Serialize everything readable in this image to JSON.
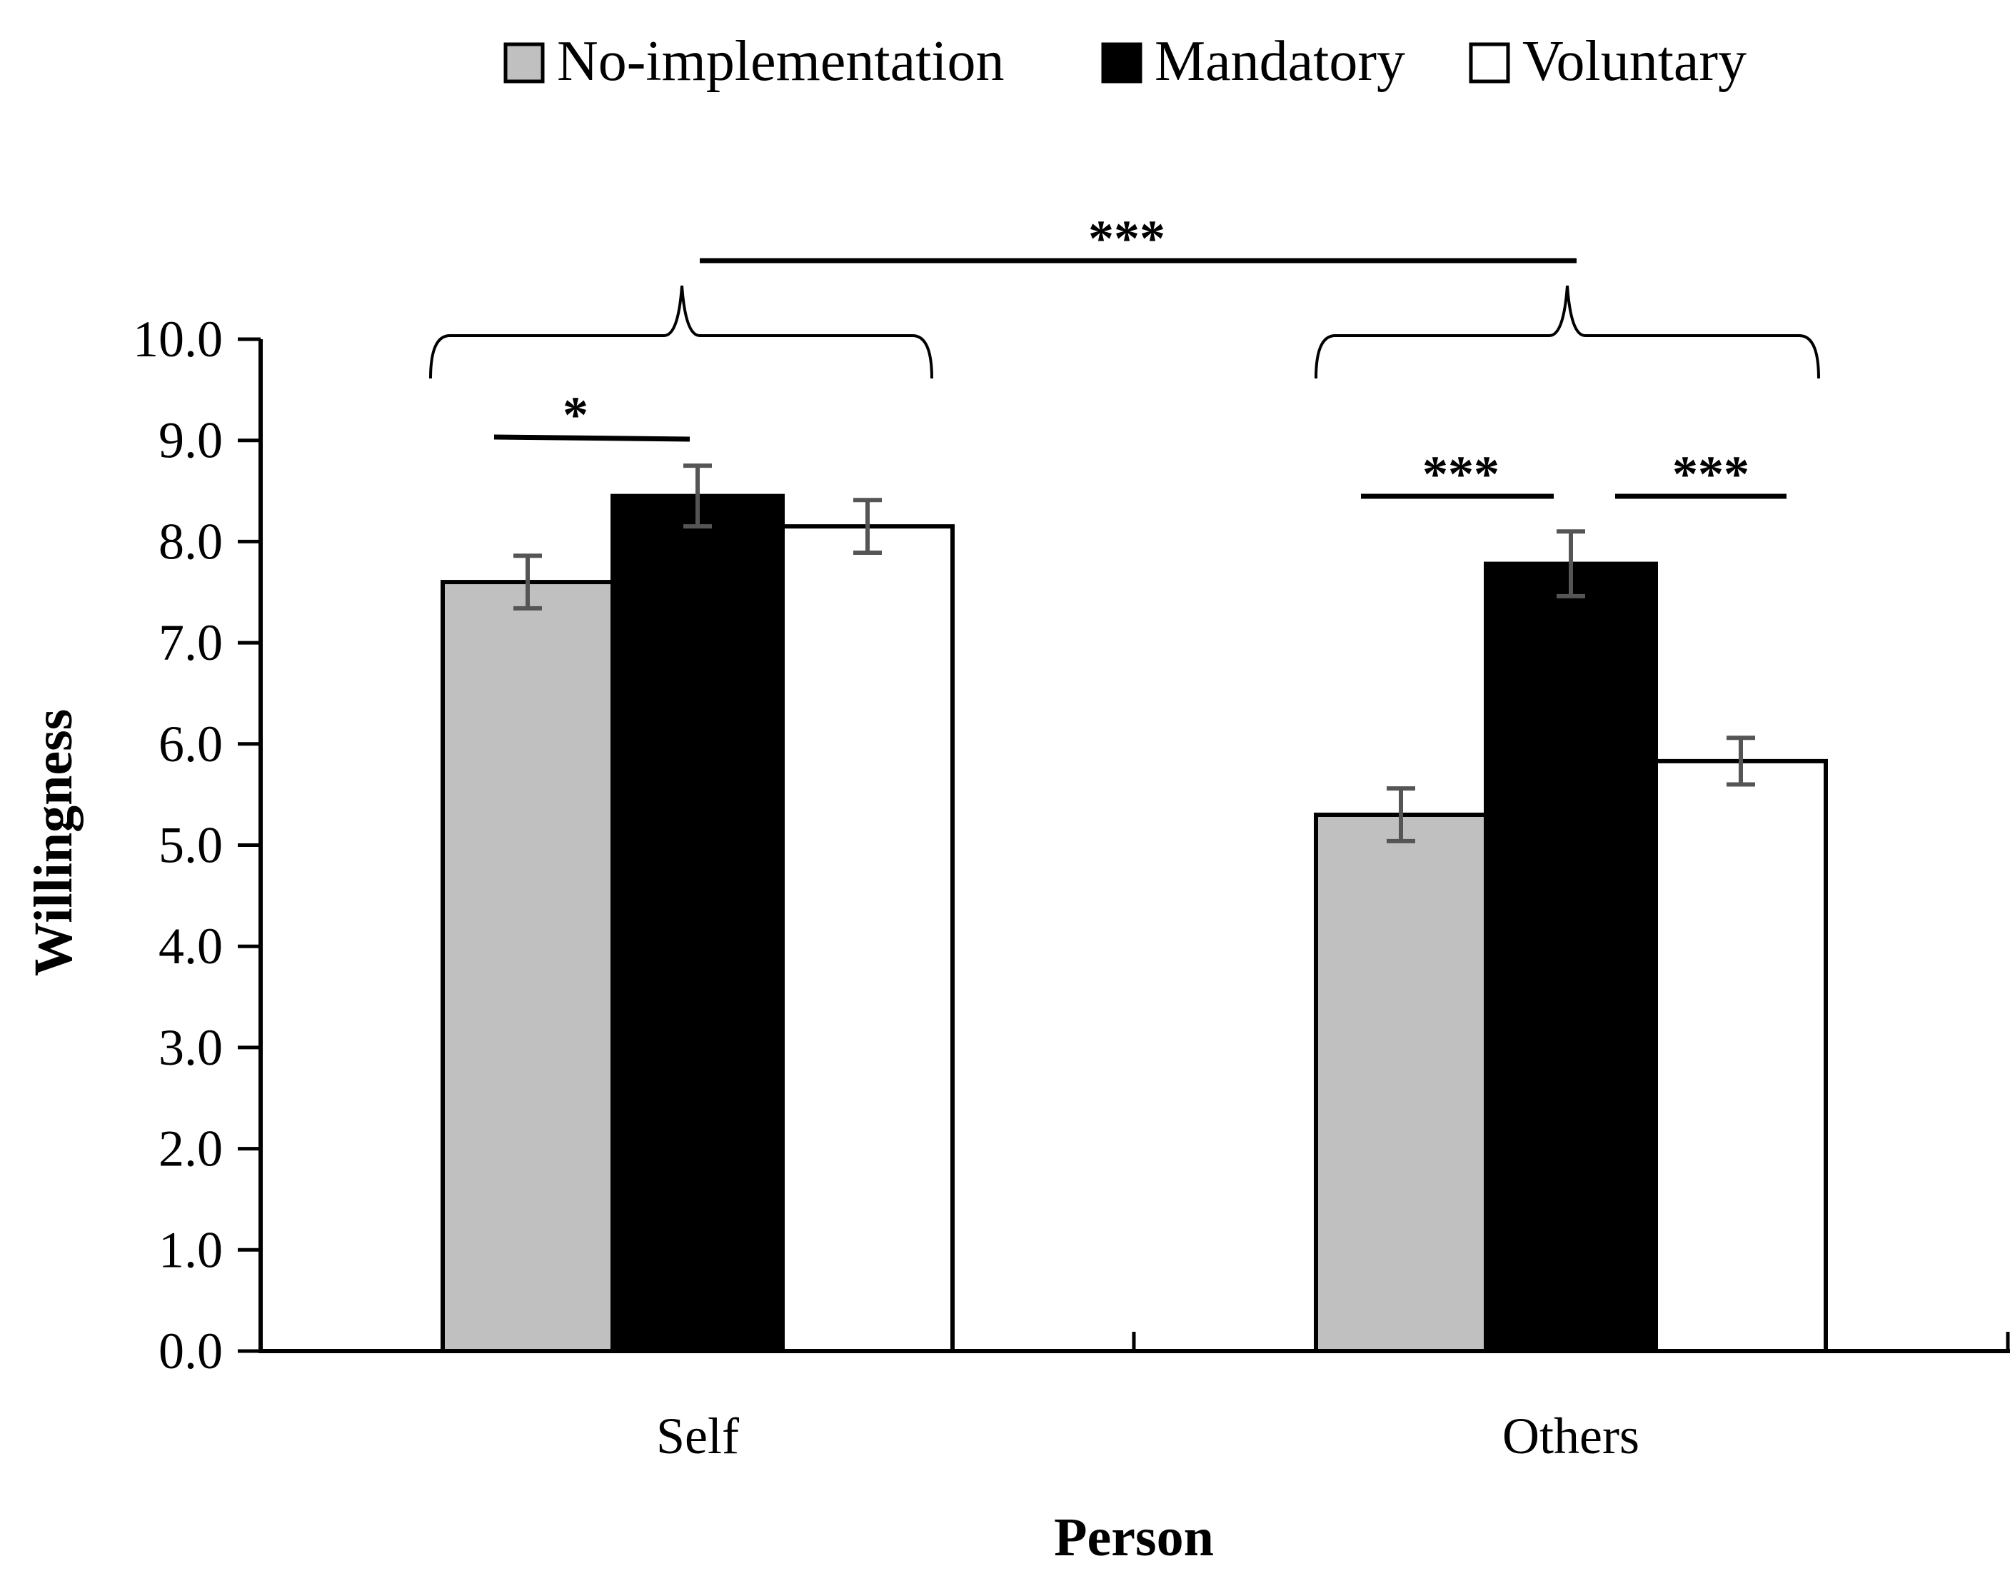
{
  "chart_data": {
    "type": "bar",
    "categories": [
      "Self",
      "Others"
    ],
    "series": [
      {
        "name": "No-implementation",
        "color": "#c0c0c0",
        "values": [
          7.6,
          5.3
        ],
        "errors": [
          0.26,
          0.26
        ]
      },
      {
        "name": "Mandatory",
        "color": "#000000",
        "values": [
          8.45,
          7.78
        ],
        "errors": [
          0.3,
          0.32
        ]
      },
      {
        "name": "Voluntary",
        "color": "#ffffff",
        "values": [
          8.15,
          5.83
        ],
        "errors": [
          0.26,
          0.23
        ]
      }
    ],
    "xlabel": "Person",
    "ylabel": "Willingness",
    "ylim": [
      0,
      10
    ],
    "yticks": [
      "0.0",
      "1.0",
      "2.0",
      "3.0",
      "4.0",
      "5.0",
      "6.0",
      "7.0",
      "8.0",
      "9.0",
      "10.0"
    ],
    "legend_position": "top",
    "error_bar_color": "#555555",
    "annotations": [
      {
        "label": "***",
        "type": "group-comparison",
        "from": "Self",
        "to": "Others"
      },
      {
        "label": "*",
        "type": "bar-comparison",
        "category": "Self",
        "from": "No-implementation",
        "to": "Mandatory"
      },
      {
        "label": "***",
        "type": "bar-comparison",
        "category": "Others",
        "from": "No-implementation",
        "to": "Mandatory"
      },
      {
        "label": "***",
        "type": "bar-comparison",
        "category": "Others",
        "from": "Mandatory",
        "to": "Voluntary"
      }
    ]
  }
}
